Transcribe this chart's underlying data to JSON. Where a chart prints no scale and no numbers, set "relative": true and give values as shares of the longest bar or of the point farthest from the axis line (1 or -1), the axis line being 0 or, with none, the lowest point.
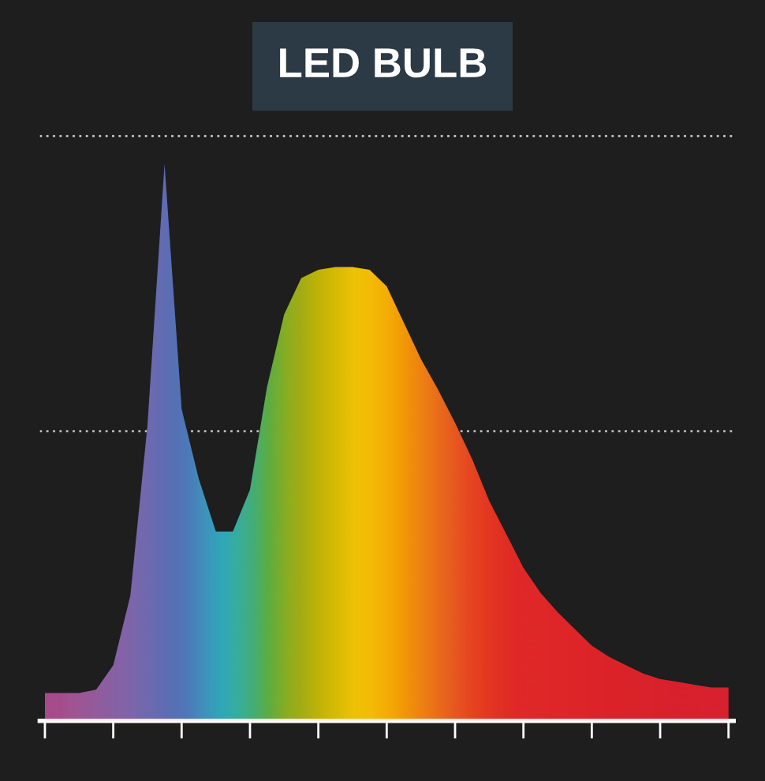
{
  "chart_data": {
    "type": "area",
    "title": "LED BULB",
    "relative": true,
    "tick_labels": false,
    "ref_lines": [
      {
        "axis": "y",
        "value": 0.52,
        "color": "#bbbbbb",
        "line_style": "dotted"
      },
      {
        "axis": "y",
        "value": 1.05,
        "color": "#bbbbbb",
        "line_style": "dotted"
      }
    ],
    "categories": [
      null,
      null,
      null,
      null,
      null,
      null,
      null,
      null,
      null,
      null,
      null,
      null,
      null,
      null,
      null,
      null,
      null,
      null,
      null,
      null,
      null,
      null,
      null,
      null,
      null,
      null,
      null,
      null,
      null,
      null,
      null,
      null,
      null,
      null,
      null,
      null,
      null,
      null,
      null,
      null,
      null
    ],
    "series": [
      {
        "color": "#e02828",
        "values": [
          0.05,
          0.05,
          0.05,
          0.056,
          0.1,
          0.225,
          0.53,
          1.0,
          0.56,
          0.435,
          0.34,
          0.34,
          0.415,
          0.6,
          0.73,
          0.795,
          0.81,
          0.815,
          0.815,
          0.81,
          0.78,
          0.715,
          0.65,
          0.595,
          0.535,
          0.47,
          0.395,
          0.335,
          0.275,
          0.23,
          0.195,
          0.165,
          0.135,
          0.115,
          0.1,
          0.085,
          0.075,
          0.07,
          0.065,
          0.06,
          0.06
        ],
        "colors": [
          "#a0509a",
          "#9a5aa0",
          "#9060a8",
          "#8466b0",
          "#7a6ab8",
          "#6a70c0",
          "#5a74c4",
          "#4a78c8",
          "#3a84cc",
          "#2aa0d0",
          "#18b8d0",
          "#20c0b0",
          "#30c080",
          "#50c040",
          "#80c020",
          "#a0c010",
          "#c0c800",
          "#d8d000",
          "#f0d800",
          "#f8d000",
          "#f8c000",
          "#f5a800",
          "#f09010",
          "#ec7818",
          "#e86020",
          "#e84a20",
          "#e53a20",
          "#e23024",
          "#e02828",
          "#e02828",
          "#df2628",
          "#de2528",
          "#dd2428",
          "#dc232a",
          "#db222a",
          "#da222c",
          "#d9212c",
          "#d8202e",
          "#d8202e",
          "#d82030",
          "#d82030"
        ]
      }
    ]
  }
}
